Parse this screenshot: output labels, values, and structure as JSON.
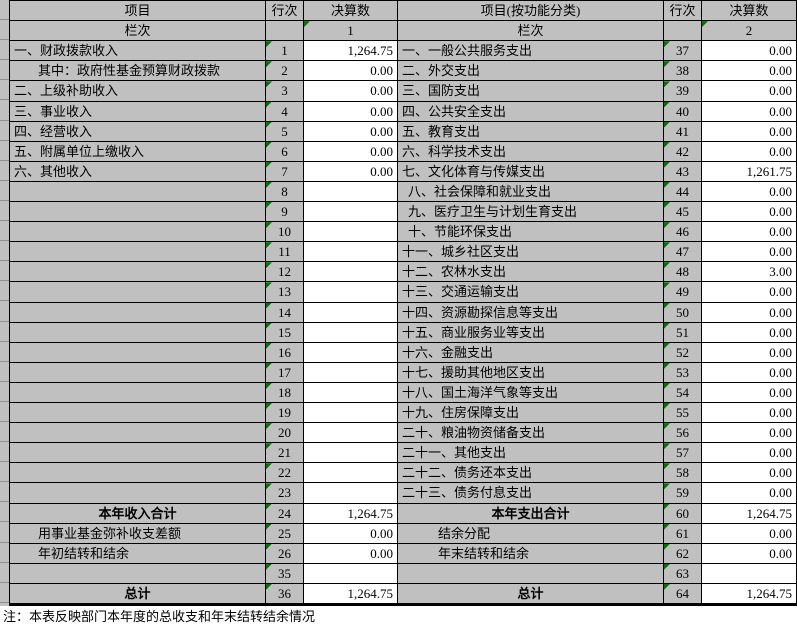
{
  "colors": {
    "cell_gray": "#c0c0c0",
    "cell_white": "#ffffff",
    "grid_border": "#000000",
    "error_triangle_green": "#007300",
    "strip_gridline": "#909090"
  },
  "footer_note": "注：本表反映部门本年度的总收支和年末结转结余情况",
  "left_table": {
    "header": {
      "item": "项目",
      "row_no": "行次",
      "amount": "决算数"
    },
    "subheader": {
      "item": "栏次",
      "row_no": "",
      "amount": "1"
    },
    "rows": [
      {
        "item": "一、财政拨款收入",
        "no": "1",
        "amt": "1,264.75"
      },
      {
        "item": "其中：政府性基金预算财政拨款",
        "no": "2",
        "amt": "0.00",
        "indent": 24
      },
      {
        "item": "二、上级补助收入",
        "no": "3",
        "amt": "0.00"
      },
      {
        "item": "三、事业收入",
        "no": "4",
        "amt": "0.00"
      },
      {
        "item": "四、经营收入",
        "no": "5",
        "amt": "0.00"
      },
      {
        "item": "五、附属单位上缴收入",
        "no": "6",
        "amt": "0.00"
      },
      {
        "item": "六、其他收入",
        "no": "7",
        "amt": "0.00"
      },
      {
        "item": "",
        "no": "8",
        "amt": ""
      },
      {
        "item": "",
        "no": "9",
        "amt": ""
      },
      {
        "item": "",
        "no": "10",
        "amt": ""
      },
      {
        "item": "",
        "no": "11",
        "amt": ""
      },
      {
        "item": "",
        "no": "12",
        "amt": ""
      },
      {
        "item": "",
        "no": "13",
        "amt": ""
      },
      {
        "item": "",
        "no": "14",
        "amt": ""
      },
      {
        "item": "",
        "no": "15",
        "amt": ""
      },
      {
        "item": "",
        "no": "16",
        "amt": ""
      },
      {
        "item": "",
        "no": "17",
        "amt": ""
      },
      {
        "item": "",
        "no": "18",
        "amt": ""
      },
      {
        "item": "",
        "no": "19",
        "amt": ""
      },
      {
        "item": "",
        "no": "20",
        "amt": ""
      },
      {
        "item": "",
        "no": "21",
        "amt": ""
      },
      {
        "item": "",
        "no": "22",
        "amt": ""
      },
      {
        "item": "",
        "no": "23",
        "amt": ""
      },
      {
        "item": "本年收入合计",
        "no": "24",
        "amt": "1,264.75",
        "bold": true
      },
      {
        "item": "用事业基金弥补收支差额",
        "no": "25",
        "amt": "0.00",
        "indent": 24
      },
      {
        "item": "年初结转和结余",
        "no": "26",
        "amt": "0.00",
        "indent": 24
      },
      {
        "item": "",
        "no": "35",
        "amt": ""
      },
      {
        "item": "总计",
        "no": "36",
        "amt": "1,264.75",
        "bold": true
      }
    ]
  },
  "right_table": {
    "header": {
      "item": "项目(按功能分类)",
      "row_no": "行次",
      "amount": "决算数"
    },
    "subheader": {
      "item": "栏次",
      "row_no": "",
      "amount": "2"
    },
    "rows": [
      {
        "item": "一、一般公共服务支出",
        "no": "37",
        "amt": "0.00"
      },
      {
        "item": "二、外交支出",
        "no": "38",
        "amt": "0.00"
      },
      {
        "item": "三、国防支出",
        "no": "39",
        "amt": "0.00"
      },
      {
        "item": "四、公共安全支出",
        "no": "40",
        "amt": "0.00"
      },
      {
        "item": "五、教育支出",
        "no": "41",
        "amt": "0.00"
      },
      {
        "item": "六、科学技术支出",
        "no": "42",
        "amt": "0.00"
      },
      {
        "item": "七、文化体育与传媒支出",
        "no": "43",
        "amt": "1,261.75"
      },
      {
        "item": "八、社会保障和就业支出",
        "no": "44",
        "amt": "0.00",
        "indent": 6
      },
      {
        "item": "九、医疗卫生与计划生育支出",
        "no": "45",
        "amt": "0.00",
        "indent": 6
      },
      {
        "item": "十、节能环保支出",
        "no": "46",
        "amt": "0.00",
        "indent": 6
      },
      {
        "item": "十一、城乡社区支出",
        "no": "47",
        "amt": "0.00"
      },
      {
        "item": "十二、农林水支出",
        "no": "48",
        "amt": "3.00"
      },
      {
        "item": "十三、交通运输支出",
        "no": "49",
        "amt": "0.00"
      },
      {
        "item": "十四、资源勘探信息等支出",
        "no": "50",
        "amt": "0.00"
      },
      {
        "item": "十五、商业服务业等支出",
        "no": "51",
        "amt": "0.00"
      },
      {
        "item": "十六、金融支出",
        "no": "52",
        "amt": "0.00"
      },
      {
        "item": "十七、援助其他地区支出",
        "no": "53",
        "amt": "0.00"
      },
      {
        "item": "十八、国土海洋气象等支出",
        "no": "54",
        "amt": "0.00"
      },
      {
        "item": "十九、住房保障支出",
        "no": "55",
        "amt": "0.00"
      },
      {
        "item": "二十、粮油物资储备支出",
        "no": "56",
        "amt": "0.00"
      },
      {
        "item": "二十一、其他支出",
        "no": "57",
        "amt": "0.00"
      },
      {
        "item": "二十二、债务还本支出",
        "no": "58",
        "amt": "0.00"
      },
      {
        "item": "二十三、债务付息支出",
        "no": "59",
        "amt": "0.00"
      },
      {
        "item": "本年支出合计",
        "no": "60",
        "amt": "1,264.75",
        "bold": true
      },
      {
        "item": "结余分配",
        "no": "61",
        "amt": "0.00",
        "indent": 36
      },
      {
        "item": "年末结转和结余",
        "no": "62",
        "amt": "0.00",
        "indent": 36
      },
      {
        "item": "",
        "no": "63",
        "amt": ""
      },
      {
        "item": "总计",
        "no": "64",
        "amt": "1,264.75",
        "bold": true
      }
    ]
  }
}
